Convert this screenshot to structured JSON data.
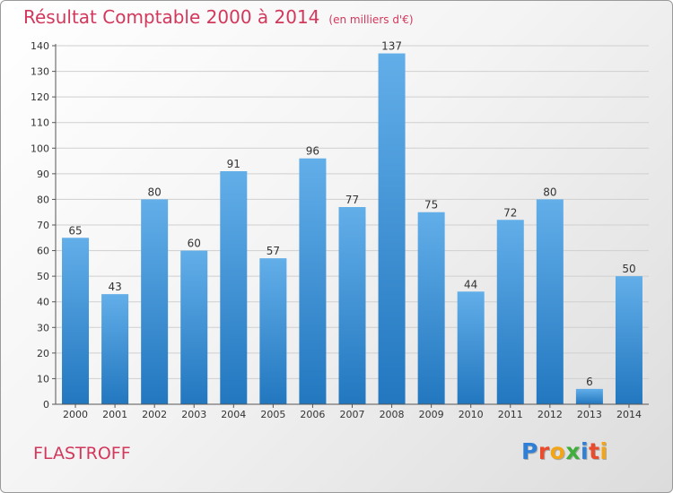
{
  "header": {
    "title": "Résultat Comptable 2000 à 2014",
    "subtitle": "(en milliers d'€)"
  },
  "commune": "FLASTROFF",
  "logo": {
    "letters": [
      "P",
      "r",
      "o",
      "x",
      "i",
      "t",
      "i"
    ]
  },
  "colors": {
    "bar_light": "#62aee9",
    "bar_dark": "#2277bf",
    "title": "#d2385c",
    "grid": "#cfcfcf"
  },
  "chart_data": {
    "type": "bar",
    "categories": [
      "2000",
      "2001",
      "2002",
      "2003",
      "2004",
      "2005",
      "2006",
      "2007",
      "2008",
      "2009",
      "2010",
      "2011",
      "2012",
      "2013",
      "2014"
    ],
    "values": [
      65,
      43,
      80,
      60,
      91,
      57,
      96,
      77,
      137,
      75,
      44,
      72,
      80,
      6,
      50
    ],
    "ylim": [
      0,
      140
    ],
    "yticks": [
      0,
      10,
      20,
      30,
      40,
      50,
      60,
      70,
      80,
      90,
      100,
      110,
      120,
      130,
      140
    ],
    "grid": true,
    "data_labels": true
  }
}
